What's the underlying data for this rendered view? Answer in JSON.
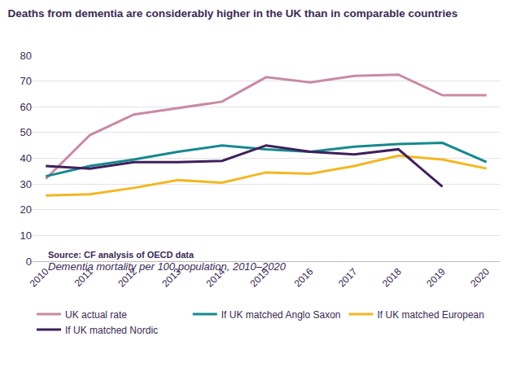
{
  "chart_data": {
    "type": "line",
    "title": "Deaths from dementia are considerably higher in the UK than in comparable countries",
    "subtitle": "Dementia mortality per 100 population, 2010–2020",
    "source": "Source: CF analysis of OECD data",
    "categories": [
      "2010",
      "2011",
      "2012",
      "2013",
      "2014",
      "2015",
      "2016",
      "2017",
      "2018",
      "2019",
      "2020"
    ],
    "series": [
      {
        "name": "UK actual rate",
        "color": "#c98aa6",
        "values": [
          32,
          49,
          57,
          59.5,
          62,
          71.5,
          69.5,
          72,
          72.5,
          64.5,
          64.5
        ]
      },
      {
        "name": "If UK matched Anglo Saxon",
        "color": "#17898e",
        "values": [
          33,
          37,
          39.5,
          42.5,
          45,
          43.5,
          42.5,
          44.5,
          45.5,
          46,
          38.5
        ]
      },
      {
        "name": "If UK matched European",
        "color": "#f2b722",
        "values": [
          25.5,
          26,
          28.5,
          31.5,
          30.5,
          34.5,
          34,
          37,
          41,
          39.5,
          36
        ]
      },
      {
        "name": "If UK matched Nordic",
        "color": "#3f1f5c",
        "values": [
          37,
          36,
          38.5,
          38.5,
          39,
          45,
          42.5,
          41.5,
          43.5,
          29,
          null
        ]
      }
    ],
    "ylim": [
      0,
      80
    ],
    "yticks": [
      0,
      10,
      20,
      30,
      40,
      50,
      60,
      70,
      80
    ],
    "grid": true,
    "legend": "bottom"
  }
}
